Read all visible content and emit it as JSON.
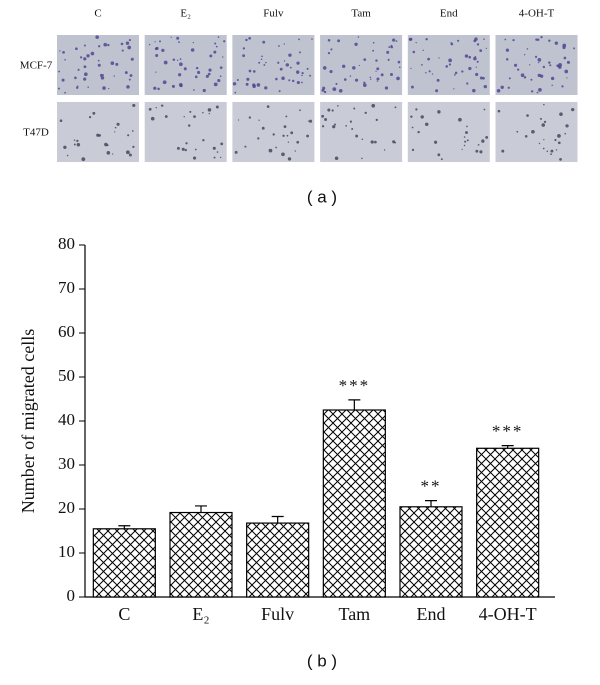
{
  "figure": {
    "panel_a": {
      "label": "( a )",
      "columns": [
        "C",
        "E₂",
        "Fulv",
        "Tam",
        "End",
        "4-OH-T"
      ],
      "rows": [
        "MCF-7",
        "T47D"
      ]
    }
  },
  "chart_data": {
    "type": "bar",
    "panel_label": "( b )",
    "y_label": "Number of migrated cells",
    "categories": [
      "C",
      "E₂",
      "Fulv",
      "Tam",
      "End",
      "4-OH-T"
    ],
    "values": [
      15.5,
      19.2,
      16.8,
      42.5,
      20.5,
      33.8
    ],
    "errors": [
      0.7,
      1.5,
      1.5,
      2.3,
      1.4,
      0.6
    ],
    "annotations": [
      null,
      null,
      null,
      "***",
      "**",
      "***"
    ],
    "ylim": [
      0,
      80
    ],
    "yticks": [
      0,
      10,
      20,
      30,
      40,
      50,
      60,
      70,
      80
    ],
    "color": "#000000"
  }
}
